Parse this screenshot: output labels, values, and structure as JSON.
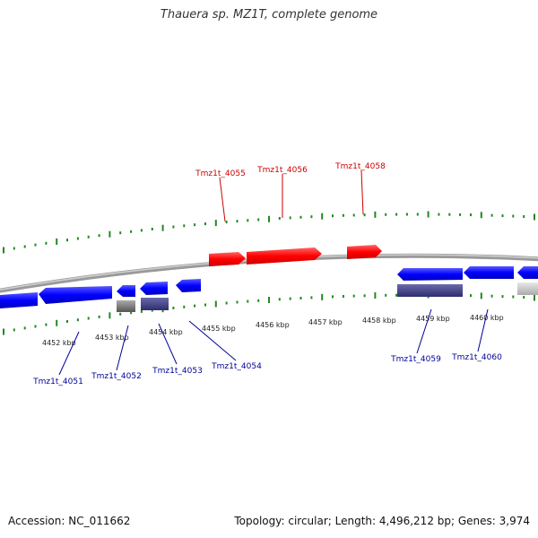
{
  "title": "Thauera sp. MZ1T, complete genome",
  "footer": {
    "accession": "Accession: NC_011662",
    "summary": "Topology: circular; Length: 4,496,212 bp; Genes: 3,974"
  },
  "colors": {
    "forward_gene": "#ff0000",
    "forward_label": "#cc0000",
    "reverse_gene": "#0000ff",
    "reverse_label": "#000099",
    "cds_reverse": "#3a3a8a",
    "cds_gray": "#777777",
    "ticks": "#228822",
    "backbone": "#888888"
  },
  "scale": {
    "labels": [
      "4452 kbp",
      "4453 kbp",
      "4454 kbp",
      "4455 kbp",
      "4456 kbp",
      "4457 kbp",
      "4458 kbp",
      "4459 kbp",
      "4460 kbp"
    ]
  },
  "forward_genes": [
    {
      "label": "Tmz1t_4055"
    },
    {
      "label": "Tmz1t_4056"
    },
    {
      "label": "Tmz1t_4058"
    }
  ],
  "reverse_genes": [
    {
      "label": "Tmz1t_4051"
    },
    {
      "label": "Tmz1t_4052"
    },
    {
      "label": "Tmz1t_4053"
    },
    {
      "label": "Tmz1t_4054"
    },
    {
      "label": "Tmz1t_4059"
    },
    {
      "label": "Tmz1t_4060"
    }
  ]
}
